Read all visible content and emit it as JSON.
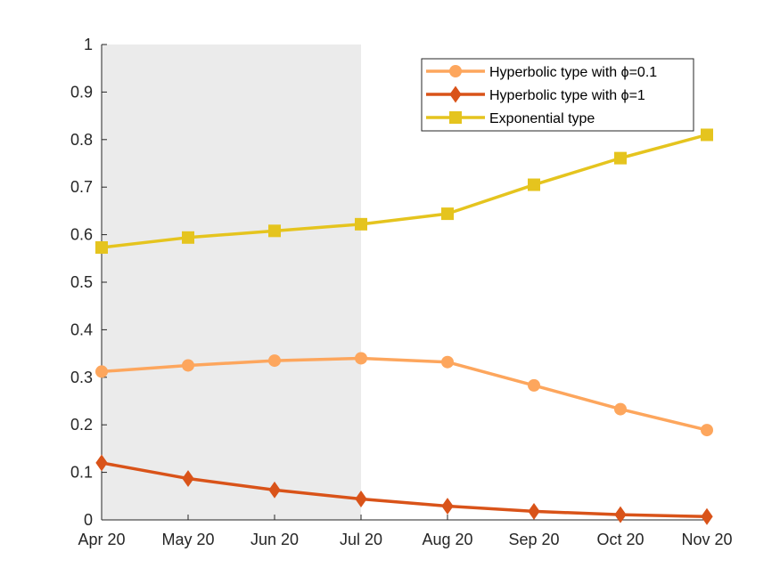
{
  "chart_data": {
    "type": "line",
    "categories": [
      "Apr 20",
      "May 20",
      "Jun 20",
      "Jul 20",
      "Aug 20",
      "Sep 20",
      "Oct 20",
      "Nov 20"
    ],
    "ylim": [
      0,
      1
    ],
    "yticks": [
      "0",
      "0.1",
      "0.2",
      "0.3",
      "0.4",
      "0.5",
      "0.6",
      "0.7",
      "0.8",
      "0.9",
      "1"
    ],
    "shaded_region": {
      "from": "Apr 20",
      "to": "Jul 20",
      "color": "#ebebeb"
    },
    "grid": false,
    "legend_position": "top-right",
    "series": [
      {
        "name": "Hyperbolic type with ϕ=0.1",
        "color": "#fda65d",
        "marker": "circle",
        "values": [
          0.312,
          0.325,
          0.335,
          0.34,
          0.332,
          0.283,
          0.233,
          0.189
        ]
      },
      {
        "name": "Hyperbolic type with ϕ=1",
        "color": "#d95319",
        "marker": "diamond",
        "values": [
          0.12,
          0.087,
          0.063,
          0.044,
          0.029,
          0.018,
          0.011,
          0.007
        ]
      },
      {
        "name": "Exponential type",
        "color": "#e5c41e",
        "marker": "square",
        "values": [
          0.573,
          0.594,
          0.608,
          0.622,
          0.644,
          0.705,
          0.761,
          0.81
        ]
      }
    ]
  }
}
